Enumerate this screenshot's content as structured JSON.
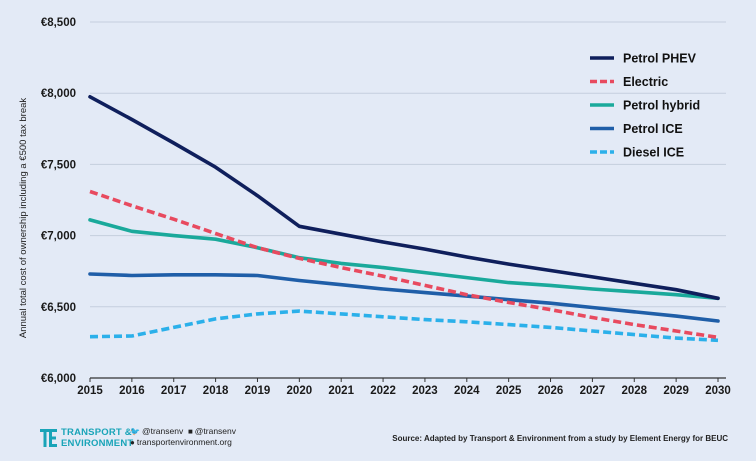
{
  "chart_data": {
    "type": "line",
    "title": "",
    "xlabel": "",
    "ylabel": "Annual total cost of ownership including a €500 tax break",
    "x": [
      "2015",
      "2016",
      "2017",
      "2018",
      "2019",
      "2020",
      "2021",
      "2022",
      "2023",
      "2024",
      "2025",
      "2026",
      "2027",
      "2028",
      "2029",
      "2030"
    ],
    "ylim": [
      6000,
      8500
    ],
    "yticks": [
      6000,
      6500,
      7000,
      7500,
      8000,
      8500
    ],
    "ytick_labels": [
      "€6,000",
      "€6,500",
      "€7,000",
      "€7,500",
      "€8,000",
      "€8,500"
    ],
    "grid": "horizontal",
    "legend_position": "top-right",
    "series": [
      {
        "name": "Petrol PHEV",
        "color": "#0f1f5c",
        "dash": "solid",
        "values": [
          7975,
          7815,
          7650,
          7480,
          7280,
          7065,
          7010,
          6955,
          6905,
          6850,
          6800,
          6755,
          6710,
          6665,
          6620,
          6560
        ]
      },
      {
        "name": "Electric",
        "color": "#e84a5f",
        "dash": "dashed",
        "values": [
          7310,
          7210,
          7115,
          7015,
          6915,
          6840,
          6775,
          6715,
          6650,
          6585,
          6530,
          6480,
          6425,
          6375,
          6330,
          6285
        ]
      },
      {
        "name": "Petrol hybrid",
        "color": "#1aa99b",
        "dash": "solid",
        "values": [
          7110,
          7030,
          7000,
          6975,
          6915,
          6845,
          6805,
          6775,
          6740,
          6705,
          6670,
          6650,
          6625,
          6605,
          6585,
          6560
        ]
      },
      {
        "name": "Petrol ICE",
        "color": "#1f5ea8",
        "dash": "solid",
        "values": [
          6730,
          6720,
          6725,
          6725,
          6720,
          6685,
          6655,
          6625,
          6600,
          6575,
          6550,
          6525,
          6495,
          6465,
          6435,
          6400
        ]
      },
      {
        "name": "Diesel ICE",
        "color": "#2bb0ea",
        "dash": "dashed",
        "values": [
          6290,
          6295,
          6355,
          6415,
          6450,
          6470,
          6450,
          6430,
          6410,
          6395,
          6375,
          6355,
          6330,
          6305,
          6280,
          6265
        ]
      }
    ]
  },
  "footer": {
    "logo_line1": "TRANSPORT &",
    "logo_line2": "ENVIRONMENT",
    "twitter": "@transenv",
    "facebook": "@transenv",
    "website": "transportenvironment.org",
    "source": "Source: Adapted by Transport & Environment from a study by Element Energy for BEUC"
  }
}
